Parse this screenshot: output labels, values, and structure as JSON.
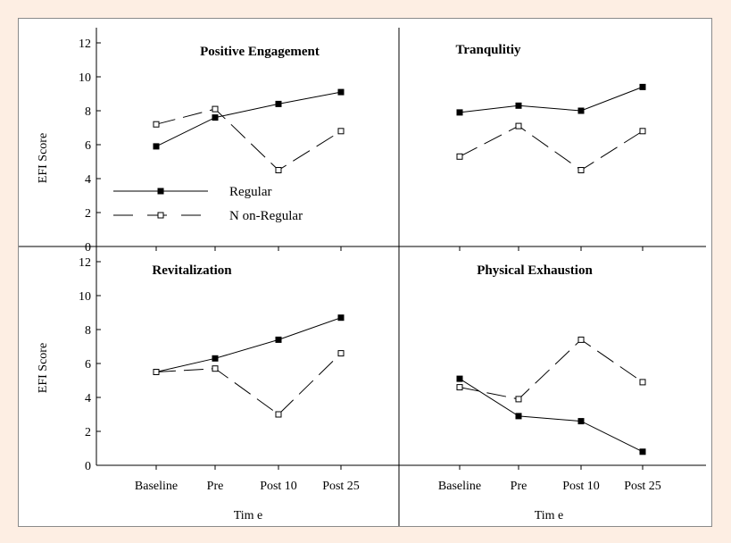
{
  "chart_data": {
    "type": "line",
    "categories": [
      "Baseline",
      "Pre",
      "Post 10",
      "Post 25"
    ],
    "ylim": [
      0,
      12
    ],
    "yticks": [
      0,
      2,
      4,
      6,
      8,
      10,
      12
    ],
    "ylabel": "EFI Score",
    "xlabel": "Tim e",
    "legend": {
      "placement": "inside-top-left-panel",
      "entries": [
        {
          "label": "Regular",
          "style": "solid",
          "marker": "filled-square"
        },
        {
          "label": "N on-Regular",
          "style": "dashed",
          "marker": "open-square"
        }
      ]
    },
    "panels": [
      {
        "title": "Positive Engagement",
        "series": [
          {
            "name": "Regular",
            "values": [
              5.9,
              7.6,
              8.4,
              9.1
            ]
          },
          {
            "name": "N on-Regular",
            "values": [
              7.2,
              8.1,
              4.5,
              6.8
            ]
          }
        ]
      },
      {
        "title": "Tranqulitiy",
        "series": [
          {
            "name": "Regular",
            "values": [
              7.9,
              8.3,
              8.0,
              9.4
            ]
          },
          {
            "name": "N on-Regular",
            "values": [
              5.3,
              7.1,
              4.5,
              6.8
            ]
          }
        ]
      },
      {
        "title": "Revitalization",
        "series": [
          {
            "name": "Regular",
            "values": [
              5.5,
              6.3,
              7.4,
              8.7
            ]
          },
          {
            "name": "N on-Regular",
            "values": [
              5.5,
              5.7,
              3.0,
              6.6
            ]
          }
        ]
      },
      {
        "title": "Physical Exhaustion",
        "series": [
          {
            "name": "Regular",
            "values": [
              5.1,
              2.9,
              2.6,
              0.8
            ]
          },
          {
            "name": "N on-Regular",
            "values": [
              4.6,
              3.9,
              7.4,
              4.9
            ]
          }
        ]
      }
    ]
  }
}
